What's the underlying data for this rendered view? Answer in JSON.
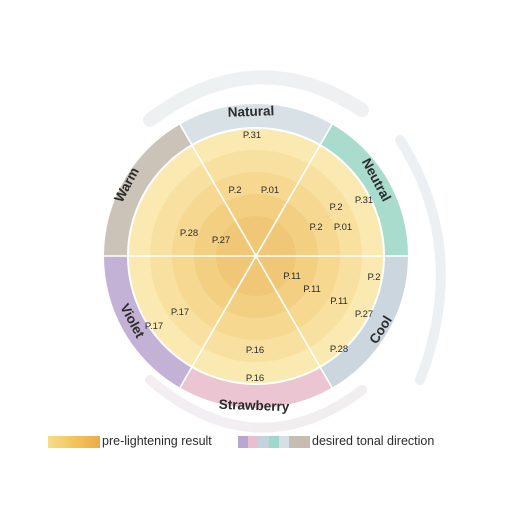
{
  "segments": [
    {
      "name": "Natural",
      "color": "#d8e2e6"
    },
    {
      "name": "Neutral",
      "color": "#a9dccc"
    },
    {
      "name": "Cool",
      "color": "#cbd6de"
    },
    {
      "name": "Strawberry",
      "color": "#ebc5d1"
    },
    {
      "name": "Violet",
      "color": "#c3b2d6"
    },
    {
      "name": "Warm",
      "color": "#cbc2b8"
    }
  ],
  "ring_colors": [
    "#fae9b0",
    "#f8e1a0",
    "#f6d891",
    "#f3cf82",
    "#f0c776"
  ],
  "codes": {
    "natural_outer": "P.31",
    "natural_mid_left": "P.2",
    "natural_mid_right": "P.01",
    "neutral_outer": "P.31",
    "neutral_upper": "P.2",
    "neutral_inner_left": "P.2",
    "neutral_inner_right": "P.01",
    "warm_outer": "P.28",
    "warm_inner": "P.27",
    "cool_outer": "P.2",
    "cool_mid": "P.27",
    "cool_far": "P.28",
    "center_top": "P.11",
    "center_mid": "P.11",
    "center_bottom": "P.11",
    "violet_inner": "P.17",
    "violet_outer": "P.17",
    "strawberry_inner": "P.16",
    "strawberry_outer": "P.16"
  },
  "legend": {
    "pre_lightening": "pre-lightening result",
    "desired": "desired tonal direction"
  }
}
